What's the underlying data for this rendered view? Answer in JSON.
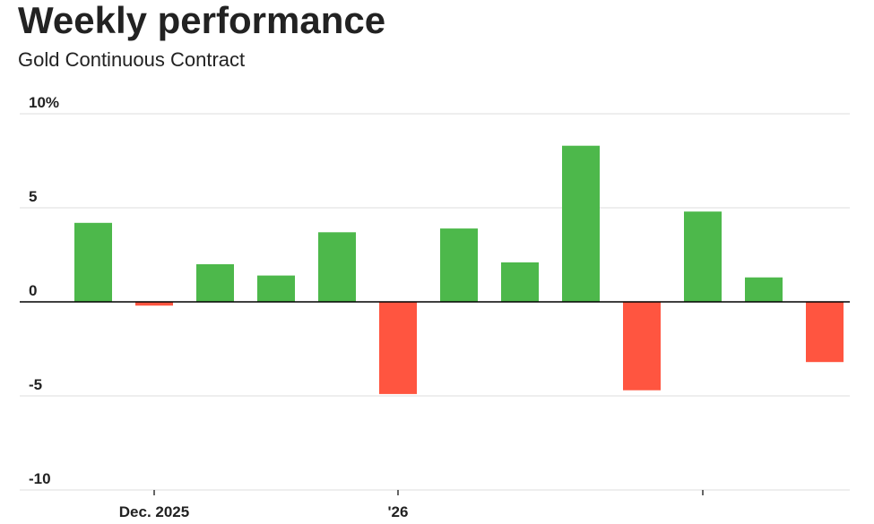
{
  "chart_data": {
    "type": "bar",
    "title": "Weekly performance",
    "subtitle": "Gold Continuous Contract",
    "categories": [
      null,
      "Dec. 2025",
      null,
      null,
      null,
      "'26",
      null,
      null,
      null,
      null,
      null,
      null,
      null
    ],
    "xticks": [
      1,
      5,
      10
    ],
    "values": [
      4.2,
      -0.2,
      2.0,
      1.4,
      3.7,
      -4.9,
      3.9,
      2.1,
      8.3,
      -4.7,
      4.8,
      1.3,
      -3.2
    ],
    "positive_color": "#4db84b",
    "negative_color": "#ff5540",
    "ylim": [
      -10,
      10
    ],
    "yticks": [
      {
        "value": 10,
        "label": "10%"
      },
      5,
      0,
      -5,
      -10
    ],
    "grid": true
  }
}
